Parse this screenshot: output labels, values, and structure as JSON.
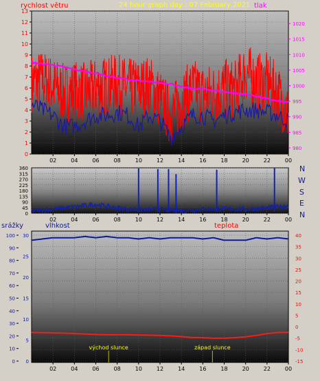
{
  "colors": {
    "wind": "#ff0000",
    "gust": "#1a1aa0",
    "pressure": "#ff00ff",
    "title": "#ffff00",
    "wind_dir": "#1020b0",
    "humidity": "#0a1a9a",
    "temperature": "#ff1a1a",
    "rain": "#1a1a80",
    "marker": "#b8b800"
  },
  "header": {
    "wind_label": "rychlost větru",
    "title": "24 hour graph day : 07 February 2021",
    "pressure_label": "tlak"
  },
  "middle": {
    "compass": [
      "N",
      "W",
      "S",
      "E",
      "N"
    ]
  },
  "bottom": {
    "rain_label": "srážky",
    "humidity_label": "vlhkost",
    "temperature_label": "teplota",
    "sunrise_label": "východ slunce",
    "sunset_label": "západ slunce"
  },
  "chart_data": [
    {
      "type": "line",
      "title": "24 hour graph day : 07 February 2021",
      "x_ticks": [
        "02",
        "04",
        "06",
        "08",
        "10",
        "12",
        "14",
        "16",
        "18",
        "20",
        "22",
        "00"
      ],
      "y_left_label": "rychlost větru",
      "y_left_ticks": [
        0,
        1,
        2,
        3,
        4,
        5,
        6,
        7,
        8,
        9,
        10,
        11,
        12,
        13
      ],
      "y_left_lim": [
        0,
        13
      ],
      "y_right_label": "tlak",
      "y_right_ticks": [
        980,
        985,
        990,
        995,
        1000,
        1005,
        1010,
        1015,
        1020
      ],
      "y_right_lim": [
        978,
        1024
      ],
      "grid": true,
      "hours": [
        0,
        1,
        2,
        3,
        4,
        5,
        6,
        7,
        8,
        9,
        10,
        11,
        12,
        13,
        14,
        15,
        16,
        17,
        18,
        19,
        20,
        21,
        22,
        23,
        24
      ],
      "series": [
        {
          "name": "rychlost větru",
          "axis": "left",
          "values": [
            6.5,
            6.8,
            6.2,
            5.5,
            5.8,
            5.6,
            6.0,
            6.2,
            6.4,
            6.0,
            6.0,
            6.3,
            5.0,
            3.5,
            4.8,
            6.0,
            5.5,
            5.5,
            6.0,
            5.8,
            7.5,
            6.5,
            6.5,
            5.5,
            3.5
          ]
        },
        {
          "name": "",
          "axis": "left",
          "values": [
            4.5,
            4.0,
            3.5,
            2.5,
            2.5,
            3.0,
            3.5,
            3.5,
            3.8,
            3.5,
            2.5,
            3.5,
            3.0,
            1.5,
            2.5,
            3.5,
            3.5,
            3.0,
            3.5,
            3.8,
            4.0,
            4.0,
            3.8,
            3.5,
            3.0
          ]
        },
        {
          "name": "tlak",
          "axis": "right",
          "values": [
            1007.5,
            1007.0,
            1006.6,
            1006.0,
            1005.2,
            1004.5,
            1004.0,
            1003.2,
            1002.5,
            1002.0,
            1001.6,
            1001.2,
            1000.9,
            1000.6,
            999.6,
            999.0,
            998.9,
            998.5,
            998.0,
            997.6,
            997.3,
            996.6,
            995.8,
            995.0,
            994.6
          ]
        }
      ]
    },
    {
      "type": "line",
      "x_ticks": [
        "02",
        "04",
        "06",
        "08",
        "10",
        "12",
        "14",
        "16",
        "18",
        "20",
        "22",
        "00"
      ],
      "y_left_ticks": [
        0,
        45,
        90,
        135,
        180,
        225,
        270,
        315,
        360
      ],
      "y_left_lim": [
        0,
        360
      ],
      "y_right_labels": [
        "N",
        "W",
        "S",
        "E",
        "N"
      ],
      "series": [
        {
          "name": "",
          "hours": [
            0,
            2,
            4,
            6,
            8,
            10,
            12,
            14,
            16,
            18,
            20,
            22,
            24
          ],
          "values": [
            20,
            30,
            50,
            70,
            40,
            25,
            30,
            20,
            30,
            35,
            30,
            40,
            60
          ]
        }
      ],
      "spikes": [
        {
          "hour": 10.0,
          "value": 355
        },
        {
          "hour": 11.8,
          "value": 350
        },
        {
          "hour": 12.8,
          "value": 350
        },
        {
          "hour": 13.5,
          "value": 310
        },
        {
          "hour": 17.3,
          "value": 345
        },
        {
          "hour": 22.7,
          "value": 360
        }
      ]
    },
    {
      "type": "line",
      "x_ticks": [
        "02",
        "04",
        "06",
        "08",
        "10",
        "12",
        "14",
        "16",
        "18",
        "20",
        "22",
        "00"
      ],
      "axis_labels": [
        "srážky",
        "vlhkost",
        "teplota"
      ],
      "y_rain_ticks": [
        0,
        10,
        20,
        30,
        40,
        50,
        60,
        70,
        80,
        90,
        100
      ],
      "y_humidity_ticks": [
        0,
        5,
        10,
        15,
        20,
        25,
        30
      ],
      "y_temperature_ticks": [
        -15,
        -10,
        -5,
        0,
        5,
        10,
        15,
        20,
        25,
        30,
        35,
        40
      ],
      "y_temperature_lim": [
        -15,
        40
      ],
      "series": [
        {
          "name": "vlhkost",
          "axis": "rain_scale",
          "hours": [
            0,
            1,
            2,
            3,
            4,
            5,
            6,
            7,
            8,
            9,
            10,
            11,
            12,
            13,
            14,
            15,
            16,
            17,
            18,
            19,
            20,
            21,
            22,
            23,
            24
          ],
          "values": [
            96,
            97,
            98,
            98,
            98,
            99,
            98,
            99,
            98,
            98,
            97,
            98,
            97,
            98,
            98,
            98,
            97,
            98,
            96,
            96,
            96,
            98,
            97,
            98,
            97
          ]
        },
        {
          "name": "teplota",
          "axis": "temperature",
          "hours": [
            0,
            1,
            2,
            3,
            4,
            5,
            6,
            7,
            8,
            9,
            10,
            11,
            12,
            13,
            14,
            15,
            16,
            17,
            18,
            19,
            20,
            21,
            22,
            23,
            24
          ],
          "values": [
            -2.5,
            -2.6,
            -2.7,
            -2.8,
            -3.0,
            -3.2,
            -3.4,
            -3.5,
            -3.5,
            -3.5,
            -3.6,
            -3.7,
            -3.8,
            -4.0,
            -4.3,
            -4.7,
            -4.8,
            -5.0,
            -5.0,
            -4.8,
            -4.4,
            -3.8,
            -3.0,
            -2.5,
            -2.5
          ]
        }
      ],
      "markers": [
        {
          "hour": 7.2,
          "label": "východ slunce"
        },
        {
          "hour": 16.9,
          "label": "západ slunce"
        }
      ]
    }
  ]
}
